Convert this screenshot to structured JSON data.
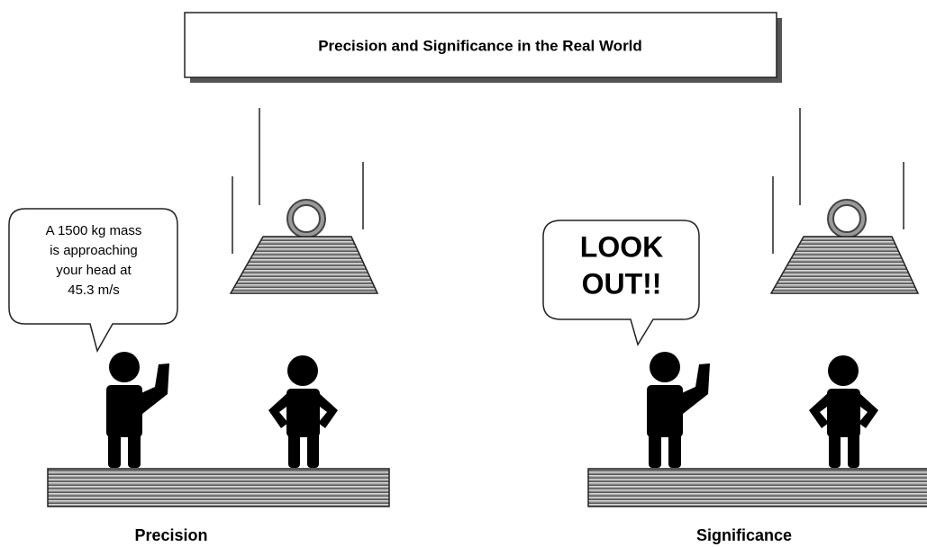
{
  "title": "Precision and Significance in the Real World",
  "panels": [
    {
      "label": "Precision",
      "speech": [
        "A 1500 kg mass",
        "is approaching",
        "your head at",
        "45.3 m/s"
      ]
    },
    {
      "label": "Significance",
      "speech": [
        "LOOK",
        "OUT!!"
      ]
    }
  ]
}
